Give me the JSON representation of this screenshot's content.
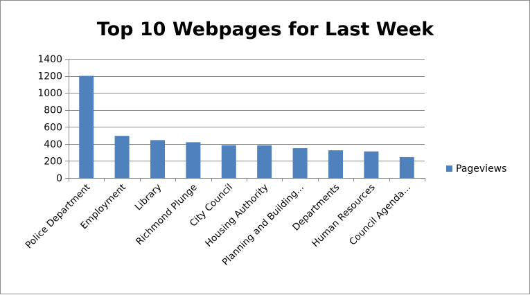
{
  "chart_data": {
    "type": "bar",
    "title": "Top 10 Webpages for Last Week",
    "xlabel": "",
    "ylabel": "",
    "categories": [
      "Police Department",
      "Employment",
      "Library",
      "Richmond Plunge",
      "City Council",
      "Housing Authority",
      "Planning and Building...",
      "Departments",
      "Human Resources",
      "Council Agenda..."
    ],
    "series": [
      {
        "name": "Pageviews",
        "color": "#4f81bd",
        "values": [
          1200,
          495,
          445,
          420,
          385,
          383,
          350,
          325,
          312,
          245
        ]
      }
    ],
    "ylim": [
      0,
      1400
    ],
    "yticks": [
      0,
      200,
      400,
      600,
      800,
      1000,
      1200,
      1400
    ],
    "grid": true,
    "legend": "right"
  }
}
